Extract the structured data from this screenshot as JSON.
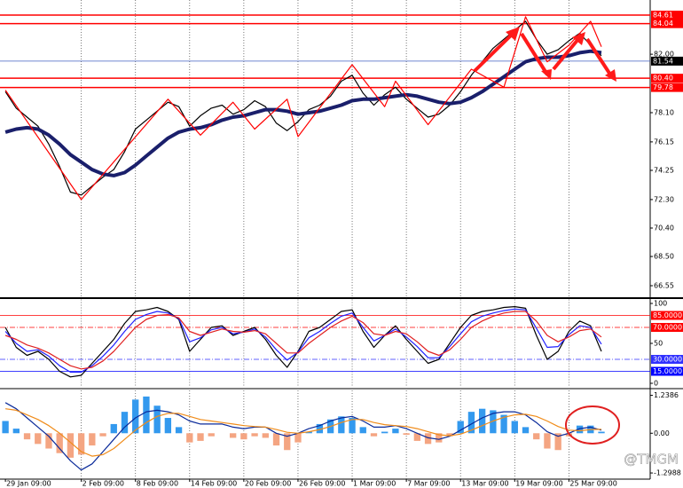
{
  "chart_data": [
    {
      "type": "line",
      "series": [
        {
          "name": "Close",
          "color": "#000000",
          "values": [
            79.5,
            78.4,
            77.8,
            77.2,
            76.0,
            74.5,
            72.8,
            72.6,
            73.2,
            73.8,
            74.3,
            75.5,
            77.0,
            77.6,
            78.2,
            78.8,
            78.5,
            77.2,
            77.9,
            78.4,
            78.6,
            78.0,
            78.3,
            78.9,
            78.5,
            77.4,
            76.9,
            77.5,
            78.3,
            78.6,
            79.2,
            80.2,
            80.6,
            79.4,
            78.6,
            79.3,
            79.8,
            79.0,
            78.4,
            77.8,
            78.0,
            78.6,
            79.5,
            80.6,
            81.5,
            82.4,
            83.0,
            83.6,
            84.2,
            83.0,
            82.0,
            82.3,
            82.9,
            83.4,
            82.6,
            81.9
          ]
        },
        {
          "name": "MA",
          "color": "#1a1f6b",
          "width": 4,
          "values": [
            76.8,
            77.0,
            77.1,
            77.0,
            76.6,
            76.0,
            75.3,
            74.8,
            74.3,
            74.0,
            73.9,
            74.1,
            74.6,
            75.2,
            75.8,
            76.4,
            76.8,
            77.0,
            77.1,
            77.3,
            77.6,
            77.8,
            77.9,
            78.1,
            78.3,
            78.3,
            78.2,
            78.0,
            78.1,
            78.2,
            78.4,
            78.6,
            78.9,
            79.0,
            79.0,
            79.1,
            79.2,
            79.3,
            79.2,
            79.0,
            78.8,
            78.7,
            78.8,
            79.1,
            79.5,
            80.0,
            80.5,
            81.0,
            81.5,
            81.7,
            81.8,
            81.8,
            81.9,
            82.1,
            82.2,
            82.1
          ]
        },
        {
          "name": "ZigZag",
          "color": "#ff0000",
          "x": [
            0,
            7,
            15,
            18,
            21,
            23,
            26,
            27,
            32,
            35,
            36,
            39,
            43,
            46,
            48,
            50,
            52,
            54,
            55
          ],
          "values": [
            79.6,
            72.3,
            79.0,
            76.6,
            78.8,
            77.0,
            79.0,
            76.5,
            81.3,
            78.5,
            80.2,
            77.3,
            81.0,
            79.8,
            84.5,
            81.5,
            82.6,
            84.2,
            82.5
          ]
        }
      ],
      "levels": [
        {
          "value": 84.61,
          "label": "84.61",
          "color": "#ff0000"
        },
        {
          "value": 84.04,
          "label": "84.04",
          "color": "#ff0000"
        },
        {
          "value": 81.54,
          "label": "81.54",
          "color": "#000000"
        },
        {
          "value": 80.4,
          "label": "80.40",
          "color": "#ff0000"
        },
        {
          "value": 79.78,
          "label": "79.78",
          "color": "#ff0000"
        }
      ],
      "ylim": [
        65.78,
        85.62
      ],
      "yticks": [
        {
          "value": 82,
          "label": "82.00"
        },
        {
          "value": 78.1,
          "label": "78.10"
        },
        {
          "value": 76.15,
          "label": "76.15"
        },
        {
          "value": 74.25,
          "label": "74.25"
        },
        {
          "value": 72.3,
          "label": "72.30"
        },
        {
          "value": 70.4,
          "label": "70.40"
        },
        {
          "value": 68.5,
          "label": "68.50"
        },
        {
          "value": 66.55,
          "label": "66.55"
        }
      ]
    },
    {
      "type": "line",
      "series": [
        {
          "name": "Fast",
          "color": "#000000",
          "values": [
            70,
            45,
            35,
            40,
            30,
            15,
            8,
            10,
            25,
            40,
            55,
            75,
            90,
            92,
            95,
            90,
            80,
            40,
            55,
            70,
            72,
            60,
            65,
            70,
            55,
            35,
            20,
            40,
            65,
            70,
            80,
            90,
            92,
            65,
            45,
            60,
            72,
            55,
            40,
            25,
            30,
            50,
            70,
            85,
            90,
            92,
            95,
            96,
            94,
            60,
            30,
            40,
            65,
            78,
            72,
            40
          ]
        },
        {
          "name": "Mid",
          "color": "#2020ff",
          "values": [
            65,
            50,
            40,
            42,
            34,
            22,
            14,
            14,
            22,
            34,
            48,
            65,
            80,
            86,
            90,
            88,
            81,
            52,
            57,
            67,
            70,
            62,
            64,
            68,
            58,
            42,
            29,
            39,
            57,
            65,
            75,
            84,
            88,
            70,
            53,
            60,
            68,
            58,
            46,
            32,
            32,
            46,
            62,
            77,
            84,
            88,
            91,
            93,
            92,
            69,
            45,
            46,
            61,
            72,
            70,
            49
          ]
        },
        {
          "name": "Slow",
          "color": "#e02020",
          "values": [
            60,
            55,
            48,
            44,
            38,
            30,
            22,
            18,
            20,
            28,
            40,
            55,
            70,
            80,
            85,
            86,
            82,
            65,
            60,
            64,
            68,
            65,
            64,
            66,
            62,
            50,
            38,
            38,
            50,
            60,
            70,
            78,
            84,
            76,
            62,
            60,
            65,
            62,
            52,
            40,
            35,
            42,
            55,
            70,
            78,
            84,
            88,
            90,
            90,
            78,
            60,
            52,
            58,
            66,
            68,
            58
          ]
        }
      ],
      "levels": [
        {
          "value": 85,
          "label": "85.0000",
          "color": "#ff0000",
          "dash": "solid"
        },
        {
          "value": 70,
          "label": "70.0000",
          "color": "#ff0000",
          "dash": "dashdot"
        },
        {
          "value": 30,
          "label": "30.0000",
          "color": "#3030ff",
          "dash": "dashdot"
        },
        {
          "value": 15,
          "label": "15.0000",
          "color": "#0000ff",
          "dash": "solid"
        }
      ],
      "ylim": [
        -5,
        105
      ],
      "yticks": [
        100,
        50,
        0
      ]
    },
    {
      "type": "macd",
      "histogram": {
        "name": "Histogram",
        "color": "#3399ee",
        "negative_color": "#f4a582",
        "values": [
          0.4,
          0.15,
          -0.2,
          -0.35,
          -0.5,
          -0.65,
          -0.8,
          -0.7,
          -0.4,
          -0.1,
          0.3,
          0.7,
          1.1,
          1.2,
          0.9,
          0.5,
          0.2,
          -0.3,
          -0.25,
          -0.1,
          0.0,
          -0.15,
          -0.2,
          -0.1,
          -0.15,
          -0.4,
          -0.55,
          -0.3,
          0.05,
          0.3,
          0.45,
          0.55,
          0.5,
          0.2,
          -0.1,
          0.05,
          0.15,
          -0.05,
          -0.25,
          -0.35,
          -0.3,
          -0.1,
          0.4,
          0.7,
          0.8,
          0.75,
          0.6,
          0.4,
          0.2,
          -0.2,
          -0.5,
          -0.55,
          -0.1,
          0.25,
          0.25,
          0.05
        ]
      },
      "series": [
        {
          "name": "MACD",
          "color": "#0a2a9a",
          "values": [
            1.0,
            0.8,
            0.5,
            0.2,
            -0.1,
            -0.5,
            -0.9,
            -1.2,
            -1.0,
            -0.6,
            -0.2,
            0.2,
            0.5,
            0.7,
            0.75,
            0.7,
            0.6,
            0.4,
            0.3,
            0.3,
            0.3,
            0.2,
            0.15,
            0.2,
            0.2,
            0.0,
            -0.1,
            0.0,
            0.15,
            0.25,
            0.4,
            0.5,
            0.55,
            0.4,
            0.2,
            0.2,
            0.25,
            0.15,
            0.0,
            -0.15,
            -0.2,
            -0.1,
            0.1,
            0.3,
            0.5,
            0.65,
            0.7,
            0.7,
            0.6,
            0.35,
            0.05,
            -0.1,
            0.0,
            0.15,
            0.2,
            0.1
          ]
        },
        {
          "name": "Signal",
          "color": "#f08c1a",
          "values": [
            0.8,
            0.75,
            0.6,
            0.45,
            0.25,
            0.0,
            -0.3,
            -0.6,
            -0.75,
            -0.7,
            -0.5,
            -0.2,
            0.1,
            0.35,
            0.55,
            0.65,
            0.65,
            0.55,
            0.45,
            0.4,
            0.35,
            0.3,
            0.25,
            0.22,
            0.2,
            0.12,
            0.03,
            0.0,
            0.05,
            0.12,
            0.22,
            0.35,
            0.45,
            0.45,
            0.35,
            0.28,
            0.25,
            0.22,
            0.15,
            0.05,
            -0.05,
            -0.08,
            -0.03,
            0.1,
            0.25,
            0.4,
            0.52,
            0.6,
            0.62,
            0.55,
            0.4,
            0.22,
            0.1,
            0.08,
            0.12,
            0.13
          ]
        }
      ],
      "ylim": [
        -1.5,
        1.4
      ],
      "yticks": [
        1.2386,
        {
          "value": 0,
          "label": "0.00"
        },
        -1.2988
      ],
      "xlim": [
        -0.5,
        59.5
      ],
      "xticks": [
        {
          "value": 0,
          "label": "29 Jan 09:00"
        },
        {
          "value": 7,
          "label": "2 Feb 09:00"
        },
        {
          "value": 12,
          "label": "8 Feb 09:00"
        },
        {
          "value": 17,
          "label": "14 Feb 09:00"
        },
        {
          "value": 22,
          "label": "20 Feb 09:00"
        },
        {
          "value": 27,
          "label": "26 Feb 09:00"
        },
        {
          "value": 32,
          "label": "1 Mar 09:00"
        },
        {
          "value": 37,
          "label": "7 Mar 09:00"
        },
        {
          "value": 42,
          "label": "13 Mar 09:00"
        },
        {
          "value": 47,
          "label": "19 Mar 09:00"
        },
        {
          "value": 52,
          "label": "25 Mar 09:00"
        }
      ]
    }
  ],
  "watermark": "@TMGM"
}
